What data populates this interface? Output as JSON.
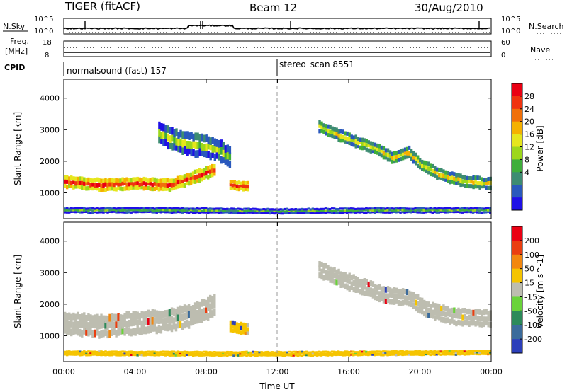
{
  "header": {
    "title": "TIGER (fitACF)",
    "beam": "Beam 12",
    "date": "30/Aug/2010"
  },
  "strips": {
    "nsky": {
      "label": "N.Sky",
      "ticks": [
        "10^5",
        "10^0"
      ],
      "right_ticks": [
        "10^5",
        "10^0"
      ],
      "right_label": "N.Search"
    },
    "freq": {
      "label_line1": "Freq.",
      "label_line2": "[MHz]",
      "ticks": [
        "18",
        "8"
      ],
      "right_ticks": [
        "60",
        "0"
      ],
      "right_label": "Nave"
    },
    "cpid": {
      "label": "CPID",
      "segments": [
        {
          "text": "normalsound (fast) 157",
          "start_hour": 0
        },
        {
          "text": "stereo_scan 8551",
          "start_hour": 12
        }
      ]
    }
  },
  "chart_data": [
    {
      "type": "heatmap",
      "name": "power",
      "x_axis": {
        "label": "Time UT",
        "range_hours": [
          0,
          24
        ],
        "tick_labels": [
          "00:00",
          "04:00",
          "08:00",
          "12:00",
          "16:00",
          "20:00",
          "00:00"
        ]
      },
      "y_axis": {
        "label": "Slant Range [km]",
        "range": [
          180,
          4600
        ],
        "tick_values": [
          1000,
          2000,
          3000,
          4000
        ]
      },
      "colorbar": {
        "label": "Power [dB]",
        "tick_labels": [
          "4",
          "8",
          "12",
          "16",
          "20",
          "24",
          "28"
        ],
        "colors": [
          "#1f10e6",
          "#2a59bd",
          "#3d8c72",
          "#3fae3b",
          "#9dd71b",
          "#e6e61d",
          "#f5b100",
          "#f0700a",
          "#f0330f",
          "#ea0013"
        ]
      },
      "bands": [
        {
          "name": "main E/F echo band",
          "points_hour_km": [
            [
              0,
              1350
            ],
            [
              2,
              1250
            ],
            [
              4,
              1300
            ],
            [
              6,
              1250
            ],
            [
              7.5,
              1550
            ],
            [
              8.5,
              1750
            ]
          ],
          "thickness_km": 400,
          "level": 0.85
        },
        {
          "name": "patch near 10 UT",
          "points_hour_km": [
            [
              9.3,
              1250
            ],
            [
              10.3,
              1200
            ]
          ],
          "thickness_km": 300,
          "level": 0.9
        },
        {
          "name": "upper scatter 6-9 UT",
          "points_hour_km": [
            [
              5.3,
              2900
            ],
            [
              6.5,
              2600
            ],
            [
              7.5,
              2500
            ],
            [
              8.5,
              2400
            ],
            [
              9.3,
              2100
            ]
          ],
          "thickness_km": 700,
          "level": 0.45
        },
        {
          "name": "afternoon arc",
          "points_hour_km": [
            [
              14.3,
              3100
            ],
            [
              16,
              2700
            ],
            [
              17.5,
              2400
            ],
            [
              18.5,
              2100
            ],
            [
              19.3,
              2300
            ],
            [
              20,
              1900
            ],
            [
              21,
              1600
            ],
            [
              22.5,
              1350
            ],
            [
              24,
              1300
            ]
          ],
          "thickness_km": 380,
          "level": 0.55
        },
        {
          "name": "ground scatter near range",
          "points_hour_km": [
            [
              0,
              450
            ],
            [
              6,
              450
            ],
            [
              12,
              420
            ],
            [
              18,
              450
            ],
            [
              24,
              450
            ]
          ],
          "thickness_km": 180,
          "level": 0.35
        }
      ]
    },
    {
      "type": "heatmap",
      "name": "velocity",
      "x_axis": {
        "label": "Time UT",
        "range_hours": [
          0,
          24
        ],
        "tick_labels": [
          "00:00",
          "04:00",
          "08:00",
          "12:00",
          "16:00",
          "20:00",
          "00:00"
        ]
      },
      "y_axis": {
        "label": "Slant Range [km]",
        "range": [
          180,
          4600
        ],
        "tick_values": [
          1000,
          2000,
          3000,
          4000
        ]
      },
      "colorbar": {
        "label": "Velocity [m s^-1]",
        "tick_labels": [
          "200",
          "100",
          "50",
          "15",
          "-15",
          "-50",
          "-100",
          "-200"
        ],
        "colors": [
          "#2c3fba",
          "#3b6b9b",
          "#2c8a5a",
          "#6ad33a",
          "#bdbdb0",
          "#f5c400",
          "#f2870f",
          "#ea3e10",
          "#ea0013"
        ]
      },
      "bands": [
        {
          "name": "main echo band (ground scatter grey)",
          "points_hour_km": [
            [
              0,
              1400
            ],
            [
              2,
              1300
            ],
            [
              4,
              1400
            ],
            [
              6,
              1500
            ],
            [
              7.5,
              1700
            ],
            [
              8.5,
              2000
            ]
          ],
          "thickness_km": 700,
          "color": "#bdbdb0"
        },
        {
          "name": "patch near 10 UT",
          "points_hour_km": [
            [
              9.3,
              1300
            ],
            [
              10.3,
              1200
            ]
          ],
          "thickness_km": 380,
          "color": "#f5c400"
        },
        {
          "name": "afternoon arc",
          "points_hour_km": [
            [
              14.3,
              3100
            ],
            [
              16,
              2700
            ],
            [
              18,
              2300
            ],
            [
              19.3,
              2200
            ],
            [
              20.5,
              1800
            ],
            [
              22,
              1600
            ],
            [
              24,
              1550
            ]
          ],
          "thickness_km": 520,
          "color": "#bdbdb0"
        },
        {
          "name": "near range band",
          "points_hour_km": [
            [
              0,
              450
            ],
            [
              12,
              430
            ],
            [
              24,
              470
            ]
          ],
          "thickness_km": 160,
          "color": "#f5c400"
        }
      ]
    }
  ]
}
